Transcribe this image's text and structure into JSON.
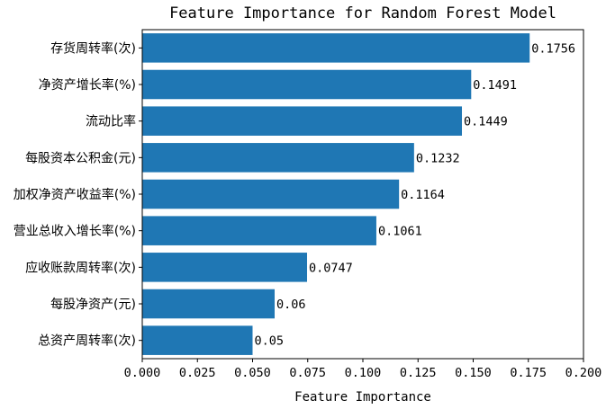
{
  "chart_data": {
    "type": "bar",
    "orientation": "horizontal",
    "title": "Feature Importance for Random Forest Model",
    "xlabel": "Feature Importance",
    "ylabel": "",
    "xlim": [
      0.0,
      0.2
    ],
    "xticks": [
      "0.000",
      "0.025",
      "0.050",
      "0.075",
      "0.100",
      "0.125",
      "0.150",
      "0.175",
      "0.200"
    ],
    "xtick_values": [
      0.0,
      0.025,
      0.05,
      0.075,
      0.1,
      0.125,
      0.15,
      0.175,
      0.2
    ],
    "grid": false,
    "bar_color": "#1f77b4",
    "categories": [
      "存货周转率(次)",
      "净资产增长率(%)",
      "流动比率",
      "每股资本公积金(元)",
      "加权净资产收益率(%)",
      "营业总收入增长率(%)",
      "应收账款周转率(次)",
      "每股净资产(元)",
      "总资产周转率(次)"
    ],
    "values": [
      0.1756,
      0.1491,
      0.1449,
      0.1232,
      0.1164,
      0.1061,
      0.0747,
      0.06,
      0.05
    ],
    "data_labels": [
      "0.1756",
      "0.1491",
      "0.1449",
      "0.1232",
      "0.1164",
      "0.1061",
      "0.0747",
      "0.06",
      "0.05"
    ]
  }
}
